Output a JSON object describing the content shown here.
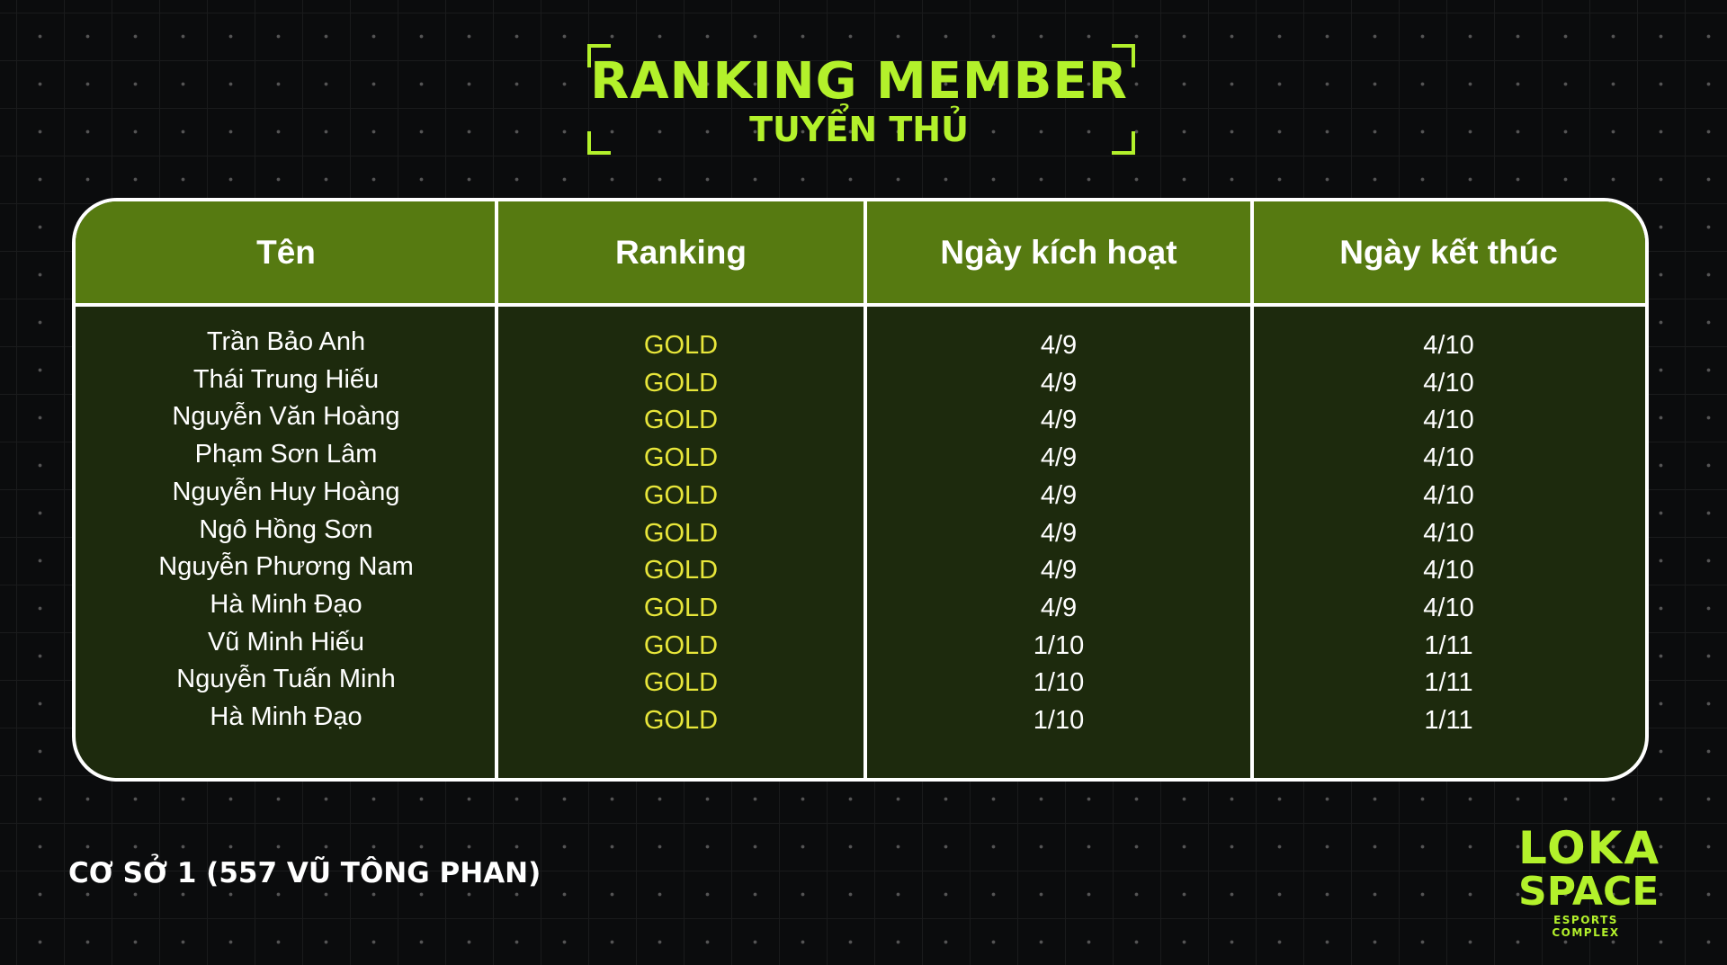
{
  "header": {
    "title": "RANKING MEMBER",
    "subtitle": "TUYỂN THỦ"
  },
  "table": {
    "columns": [
      "Tên",
      "Ranking",
      "Ngày kích hoạt",
      "Ngày kết thúc"
    ],
    "rows": [
      [
        "Trần Bảo Anh",
        "GOLD",
        "4/9",
        "4/10"
      ],
      [
        "Thái Trung Hiếu",
        "GOLD",
        "4/9",
        "4/10"
      ],
      [
        "Nguyễn Văn Hoàng",
        "GOLD",
        "4/9",
        "4/10"
      ],
      [
        "Phạm Sơn Lâm",
        "GOLD",
        "4/9",
        "4/10"
      ],
      [
        "Nguyễn Huy Hoàng",
        "GOLD",
        "4/9",
        "4/10"
      ],
      [
        "Ngô Hồng Sơn",
        "GOLD",
        "4/9",
        "4/10"
      ],
      [
        "Nguyễn Phương Nam",
        "GOLD",
        "4/9",
        "4/10"
      ],
      [
        "Hà Minh Đạo",
        "GOLD",
        "4/9",
        "4/10"
      ],
      [
        "Vũ Minh Hiếu",
        "GOLD",
        "1/10",
        "1/11"
      ],
      [
        "Nguyễn Tuấn Minh",
        "GOLD",
        "1/10",
        "1/11"
      ],
      [
        "Hà Minh Đạo",
        "GOLD",
        "1/10",
        "1/11"
      ]
    ]
  },
  "footer": {
    "location": "CƠ SỞ 1 (557 VŨ TÔNG PHAN)"
  },
  "logo": {
    "line1": "LOKA",
    "line2": "SPACE",
    "tagline": "ESPORTS COMPLEX"
  }
}
